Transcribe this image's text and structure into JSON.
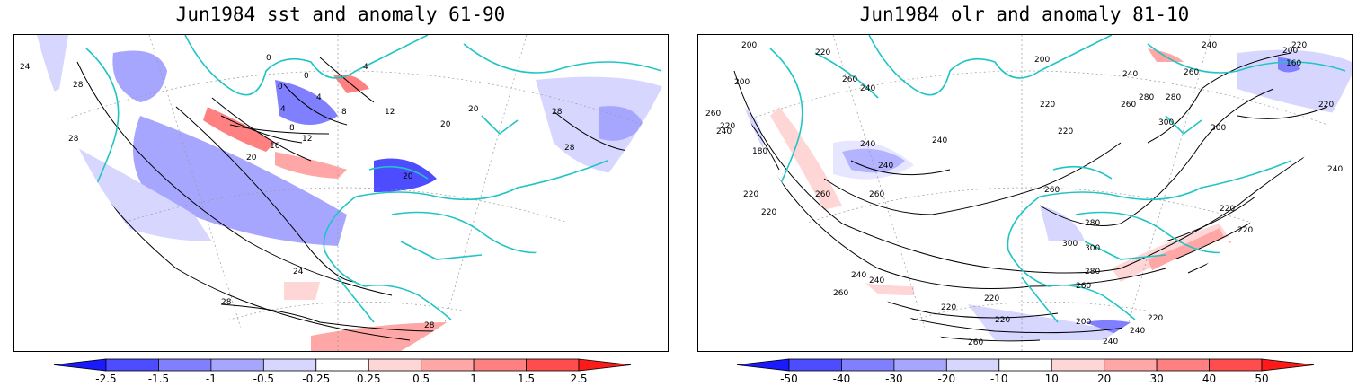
{
  "left_panel": {
    "title": "Jun1984 sst and anomaly 61-90",
    "contour_labels": [
      "24",
      "28",
      "28",
      "0",
      "0",
      "4",
      "4",
      "8",
      "8",
      "12",
      "12",
      "16",
      "20",
      "20",
      "20",
      "20",
      "28",
      "28",
      "24",
      "28",
      "28",
      "4",
      "0"
    ],
    "colorbar": {
      "tick_labels": [
        "-2.5",
        "-1.5",
        "-1",
        "-0.5",
        "-0.25",
        "0.25",
        "0.5",
        "1",
        "1.5",
        "2.5"
      ],
      "colors": [
        "#1a1aff",
        "#4d4dff",
        "#8080ff",
        "#a6a6ff",
        "#d6d6ff",
        "#ffffff",
        "#ffd6d6",
        "#ffa6a6",
        "#ff8080",
        "#ff4d4d",
        "#ff1a1a"
      ]
    }
  },
  "right_panel": {
    "title": "Jun1984 olr and anomaly 81-10",
    "contour_labels": [
      "200",
      "220",
      "260",
      "260",
      "200",
      "240",
      "180",
      "220",
      "240",
      "260",
      "240",
      "220",
      "220",
      "240",
      "260",
      "240",
      "200",
      "220",
      "280",
      "300",
      "260",
      "280",
      "300",
      "240",
      "220",
      "260",
      "300",
      "280",
      "220",
      "240",
      "240",
      "220",
      "260",
      "260",
      "220",
      "220",
      "200",
      "240",
      "260",
      "240",
      "220",
      "300",
      "280",
      "260",
      "240",
      "200",
      "220",
      "220",
      "160",
      "220",
      "240"
    ],
    "colorbar": {
      "tick_labels": [
        "-50",
        "-40",
        "-30",
        "-20",
        "-10",
        "10",
        "20",
        "30",
        "40",
        "50"
      ],
      "colors": [
        "#1a1aff",
        "#4d4dff",
        "#8080ff",
        "#a6a6ff",
        "#d6d6ff",
        "#ffffff",
        "#ffd6d6",
        "#ffa6a6",
        "#ff8080",
        "#ff4d4d",
        "#ff1a1a"
      ]
    }
  },
  "colors": {
    "coastline": "#1fc4c4",
    "contour": "#000000",
    "frame": "#000000"
  }
}
